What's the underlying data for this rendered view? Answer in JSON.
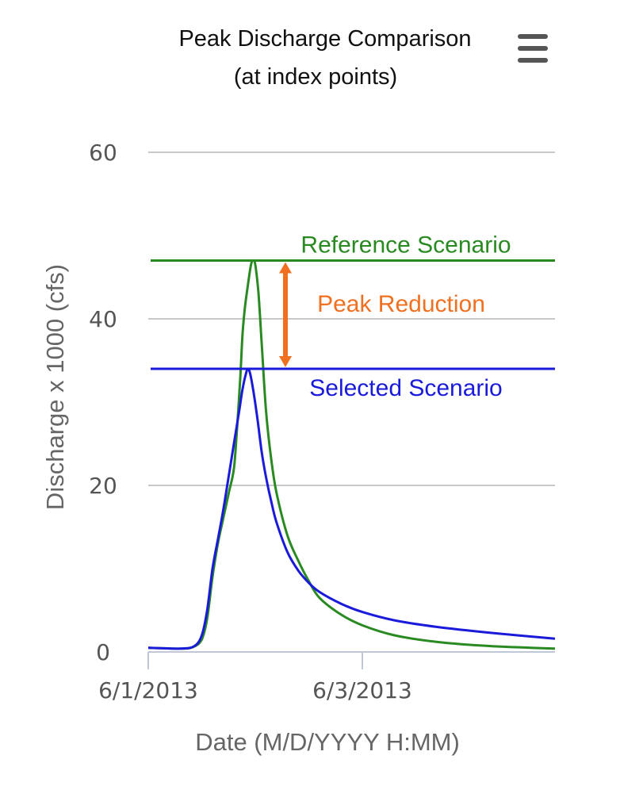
{
  "chart_data": {
    "type": "line",
    "title": "Peak Discharge Comparison",
    "subtitle": "(at index points)",
    "xlabel": "Date (M/D/YYYY H:MM)",
    "ylabel": "Discharge x 1000 (cfs)",
    "ylim": [
      0,
      60
    ],
    "yticks": [
      0,
      20,
      40,
      60
    ],
    "x_range_days": [
      0,
      3.8
    ],
    "xticks": [
      {
        "x": 0,
        "label": "6/1/2013"
      },
      {
        "x": 2,
        "label": "6/3/2013"
      }
    ],
    "grid": true,
    "series": [
      {
        "name": "Reference Scenario",
        "color": "#2a8a22",
        "points": [
          [
            0,
            0.5
          ],
          [
            0.3,
            0.4
          ],
          [
            0.42,
            0.6
          ],
          [
            0.5,
            1.5
          ],
          [
            0.55,
            4
          ],
          [
            0.6,
            9
          ],
          [
            0.65,
            13
          ],
          [
            0.7,
            16
          ],
          [
            0.75,
            19
          ],
          [
            0.8,
            22
          ],
          [
            0.83,
            27
          ],
          [
            0.86,
            33
          ],
          [
            0.88,
            38
          ],
          [
            0.9,
            41
          ],
          [
            0.93,
            44
          ],
          [
            0.96,
            46.5
          ],
          [
            0.98,
            47
          ],
          [
            1.0,
            46.5
          ],
          [
            1.03,
            43
          ],
          [
            1.06,
            37
          ],
          [
            1.1,
            29
          ],
          [
            1.15,
            23
          ],
          [
            1.2,
            19
          ],
          [
            1.3,
            14
          ],
          [
            1.4,
            11
          ],
          [
            1.5,
            8.5
          ],
          [
            1.6,
            6.5
          ],
          [
            1.8,
            4.5
          ],
          [
            2.0,
            3.2
          ],
          [
            2.3,
            2.0
          ],
          [
            2.7,
            1.2
          ],
          [
            3.2,
            0.7
          ],
          [
            3.8,
            0.4
          ]
        ]
      },
      {
        "name": "Selected Scenario",
        "color": "#1a1adb",
        "points": [
          [
            0,
            0.5
          ],
          [
            0.3,
            0.4
          ],
          [
            0.43,
            0.7
          ],
          [
            0.5,
            2
          ],
          [
            0.55,
            5
          ],
          [
            0.6,
            10
          ],
          [
            0.65,
            13.5
          ],
          [
            0.7,
            17
          ],
          [
            0.75,
            21
          ],
          [
            0.8,
            25
          ],
          [
            0.85,
            29
          ],
          [
            0.88,
            31.5
          ],
          [
            0.91,
            33.3
          ],
          [
            0.93,
            34
          ],
          [
            0.95,
            33.5
          ],
          [
            0.98,
            31.5
          ],
          [
            1.02,
            28
          ],
          [
            1.06,
            24
          ],
          [
            1.1,
            21
          ],
          [
            1.15,
            18
          ],
          [
            1.2,
            15.5
          ],
          [
            1.3,
            12
          ],
          [
            1.4,
            9.8
          ],
          [
            1.5,
            8.3
          ],
          [
            1.6,
            7.2
          ],
          [
            1.8,
            5.8
          ],
          [
            2.0,
            4.8
          ],
          [
            2.3,
            3.8
          ],
          [
            2.7,
            3.0
          ],
          [
            3.2,
            2.3
          ],
          [
            3.8,
            1.6
          ]
        ]
      }
    ],
    "reference_lines": [
      {
        "y": 47,
        "label": "Reference Scenario",
        "color": "#2a8a22"
      },
      {
        "y": 34,
        "label": "Selected Scenario",
        "color": "#1a1adb"
      }
    ],
    "annotation": {
      "label": "Peak Reduction",
      "from": 47,
      "to": 34,
      "x": 1.3,
      "color": "#f07020"
    }
  },
  "menu_icon": "hamburger-menu-icon"
}
